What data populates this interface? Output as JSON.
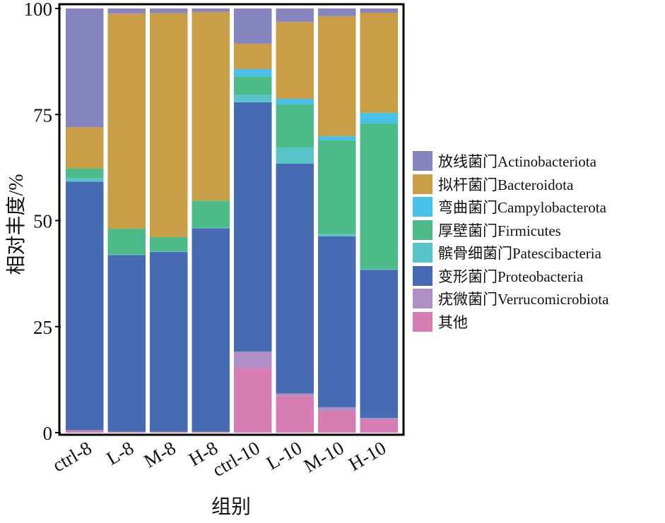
{
  "chart_data": {
    "type": "bar",
    "stacked": true,
    "title": "",
    "xlabel": "组别",
    "ylabel": "相对丰度/%",
    "ylim": [
      0,
      100
    ],
    "yticks": [
      0,
      25,
      50,
      75,
      100
    ],
    "grid": false,
    "legend_position": "right",
    "categories": [
      "ctrl-8",
      "L-8",
      "M-8",
      "H-8",
      "ctrl-10",
      "L-10",
      "M-10",
      "H-10"
    ],
    "series": [
      {
        "name": "其他",
        "color": "#D87DB3",
        "values": [
          0.6,
          0.2,
          0.2,
          0.2,
          15.3,
          8.6,
          5.0,
          3.0
        ]
      },
      {
        "name": "疣微菌门Verrucomicrobiota",
        "color": "#AE8FC6",
        "values": [
          0.0,
          0.0,
          0.0,
          0.0,
          3.8,
          0.6,
          1.0,
          0.5
        ]
      },
      {
        "name": "变形菌门Proteobacteria",
        "color": "#476BB2",
        "values": [
          58.6,
          41.7,
          42.4,
          48.0,
          58.8,
          54.2,
          40.3,
          34.9
        ]
      },
      {
        "name": "髌骨细菌门Patescibacteria",
        "color": "#58C4C9",
        "values": [
          0.8,
          0.1,
          0.1,
          0.1,
          1.8,
          3.8,
          0.5,
          0.2
        ]
      },
      {
        "name": "厚壁菌门Firmicutes",
        "color": "#4DBB87",
        "values": [
          2.3,
          6.1,
          3.4,
          6.4,
          4.3,
          10.2,
          22.1,
          34.3
        ]
      },
      {
        "name": "弯曲菌门Campylobacterota",
        "color": "#47C1EA",
        "values": [
          0.0,
          0.0,
          0.0,
          0.0,
          1.7,
          1.3,
          1.0,
          2.5
        ]
      },
      {
        "name": "拟杆菌门Bacteroidota",
        "color": "#C99E47",
        "values": [
          9.7,
          50.7,
          52.8,
          44.5,
          6.0,
          18.1,
          28.3,
          23.6
        ]
      },
      {
        "name": "放线菌门Actinobacteriota",
        "color": "#8785BF",
        "values": [
          28.0,
          1.2,
          1.1,
          0.8,
          8.3,
          3.2,
          1.8,
          1.0
        ]
      }
    ],
    "legend_order": [
      "放线菌门Actinobacteriota",
      "拟杆菌门Bacteroidota",
      "弯曲菌门Campylobacterota",
      "厚壁菌门Firmicutes",
      "髌骨细菌门Patescibacteria",
      "变形菌门Proteobacteria",
      "疣微菌门Verrucomicrobiota",
      "其他"
    ]
  }
}
